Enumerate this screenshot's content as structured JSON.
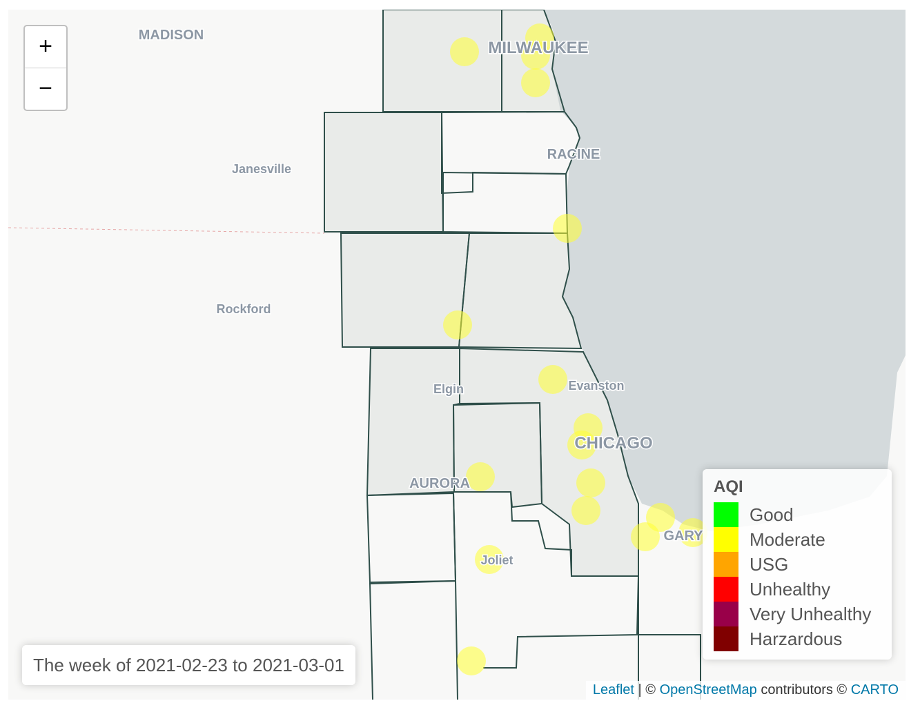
{
  "zoom_controls": {
    "zoom_in": "+",
    "zoom_out": "−"
  },
  "place_labels": [
    "MADISON",
    "MILWAUKEE",
    "RACINE",
    "Janesville",
    "Rockford",
    "Evanston",
    "Elgin",
    "CHICAGO",
    "AURORA",
    "GARY",
    "Joliet"
  ],
  "legend": {
    "title": "AQI",
    "items": [
      {
        "label": "Good",
        "color": "#00ff00"
      },
      {
        "label": "Moderate",
        "color": "#ffff00"
      },
      {
        "label": "USG",
        "color": "#ffa500"
      },
      {
        "label": "Unhealthy",
        "color": "#ff0000"
      },
      {
        "label": "Very Unhealthy",
        "color": "#990049"
      },
      {
        "label": "Harzardous",
        "color": "#800000"
      }
    ]
  },
  "info": "The week of 2021-02-23 to 2021-03-01",
  "attribution": {
    "leaflet": "Leaflet",
    "separator": "| ©",
    "osm": "OpenStreetMap",
    "contributors": "contributors ©",
    "carto": "CARTO"
  }
}
